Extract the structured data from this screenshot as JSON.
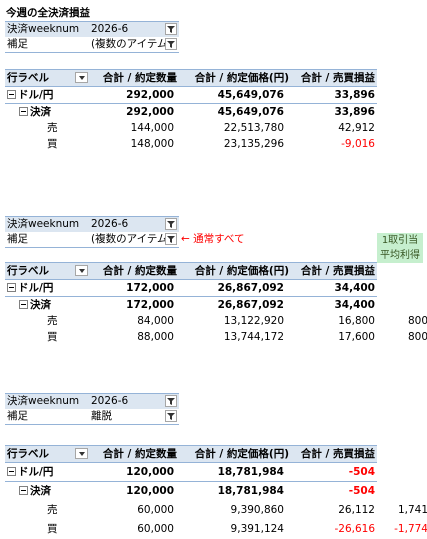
{
  "title": "今週の全決済損益",
  "sections": [
    {
      "filter": {
        "field1_label": "決済weeknum",
        "field1_value": "2026-6",
        "field2_label": "補足",
        "field2_value": "(複数のアイテム)"
      },
      "header": {
        "row_label": "行ラベル",
        "col1": "合計 / 約定数量",
        "col2": "合計 / 約定価格(円)",
        "col3": "合計 / 売買損益"
      },
      "rows": [
        {
          "label": "ドル/円",
          "v1": "292,000",
          "v2": "45,649,076",
          "v3": "33,896"
        },
        {
          "label": "決済",
          "v1": "292,000",
          "v2": "45,649,076",
          "v3": "33,896"
        },
        {
          "label": "売",
          "v1": "144,000",
          "v2": "22,513,780",
          "v3": "42,912"
        },
        {
          "label": "買",
          "v1": "148,000",
          "v2": "23,135,296",
          "v3": "-9,016"
        }
      ]
    },
    {
      "filter": {
        "field1_label": "決済weeknum",
        "field1_value": "2026-6",
        "field2_label": "補足",
        "field2_value": "(複数のアイテム)"
      },
      "note": "← 通常すべて",
      "green": [
        "1取引当り",
        "平均利得"
      ],
      "header": {
        "row_label": "行ラベル",
        "col1": "合計 / 約定数量",
        "col2": "合計 / 約定価格(円)",
        "col3": "合計 / 売買損益"
      },
      "rows": [
        {
          "label": "ドル/円",
          "v1": "172,000",
          "v2": "26,867,092",
          "v3": "34,400"
        },
        {
          "label": "決済",
          "v1": "172,000",
          "v2": "26,867,092",
          "v3": "34,400"
        },
        {
          "label": "売",
          "v1": "84,000",
          "v2": "13,122,920",
          "v3": "16,800",
          "extra": "800"
        },
        {
          "label": "買",
          "v1": "88,000",
          "v2": "13,744,172",
          "v3": "17,600",
          "extra": "800"
        }
      ]
    },
    {
      "filter": {
        "field1_label": "決済weeknum",
        "field1_value": "2026-6",
        "field2_label": "補足",
        "field2_value": "離脱"
      },
      "header": {
        "row_label": "行ラベル",
        "col1": "合計 / 約定数量",
        "col2": "合計 / 約定価格(円)",
        "col3": "合計 / 売買損益"
      },
      "rows": [
        {
          "label": "ドル/円",
          "v1": "120,000",
          "v2": "18,781,984",
          "v3": "-504"
        },
        {
          "label": "決済",
          "v1": "120,000",
          "v2": "18,781,984",
          "v3": "-504"
        },
        {
          "label": "売",
          "v1": "60,000",
          "v2": "9,390,860",
          "v3": "26,112",
          "extra": "1,741"
        },
        {
          "label": "買",
          "v1": "60,000",
          "v2": "9,391,124",
          "v3": "-26,616",
          "extra": "-1,774"
        }
      ]
    }
  ]
}
